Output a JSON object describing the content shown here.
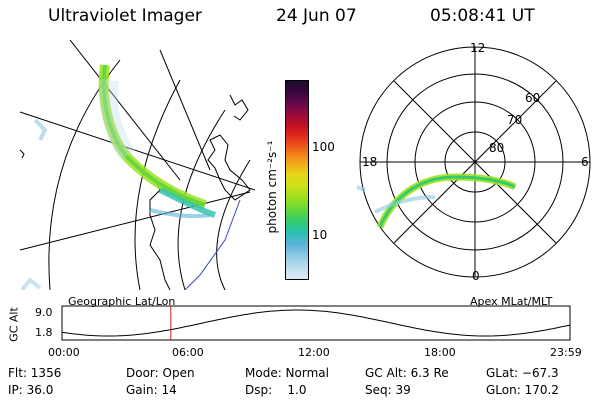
{
  "header": {
    "title": "Ultraviolet Imager",
    "date": "24 Jun 07",
    "time": "05:08:41 UT"
  },
  "colorbar": {
    "unit_label": "photon cm⁻²s⁻¹",
    "ticks": [
      "100",
      "10"
    ],
    "colors": [
      "#1a0a2a",
      "#3a0640",
      "#6a0a4a",
      "#9c0a3a",
      "#c81420",
      "#e6361a",
      "#f0701a",
      "#f4a41c",
      "#e8d61a",
      "#cce01a",
      "#9ee020",
      "#66d838",
      "#34cc6a",
      "#2ac0b0",
      "#5ab4d8",
      "#8ec8e4",
      "#bcdcee",
      "#ddeaf4"
    ]
  },
  "left_map": {
    "caption": "Geographic Lat/Lon"
  },
  "right_map": {
    "caption": "Apex MLat/MLT",
    "mlt_labels": {
      "top": "12",
      "left": "18",
      "right": "6",
      "bottom": "0"
    },
    "lat_labels": [
      "60",
      "70",
      "80"
    ]
  },
  "altitude_plot": {
    "ylabel": "GC Alt",
    "yticks": [
      "9.0",
      "1.8"
    ],
    "xticks": [
      "00:00",
      "06:00",
      "12:00",
      "18:00",
      "23:59"
    ],
    "current_time_hours": 5.14
  },
  "footer": {
    "flt": "Flt: 1356",
    "ip": "IP: 36.0",
    "door": "Door: Open",
    "gain": "Gain: 14",
    "mode": "Mode: Normal",
    "dsp": "Dsp:    1.0",
    "gc_alt": "GC Alt: 6.3 Re",
    "seq": "Seq: 39",
    "glat": "GLat: −67.3",
    "glon": "GLon: 170.2"
  }
}
